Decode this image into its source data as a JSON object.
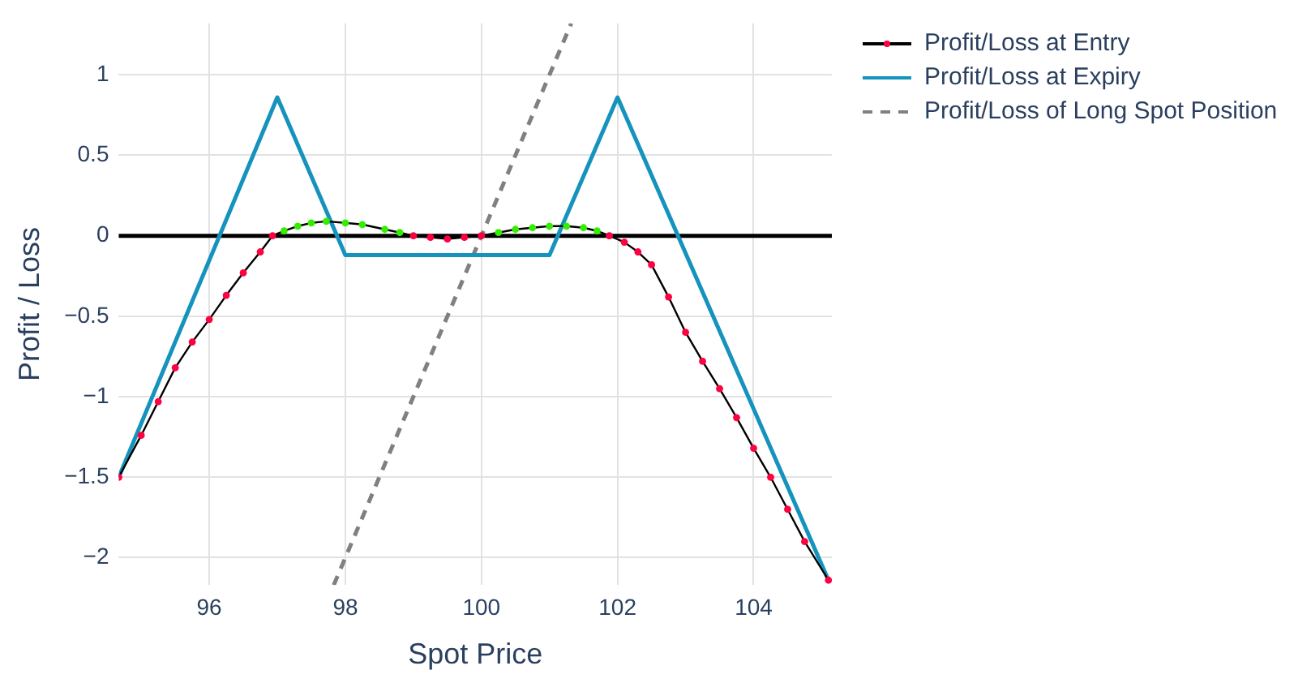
{
  "chart_data": {
    "type": "line",
    "xlabel": "Spot Price",
    "ylabel": "Profit / Loss",
    "xlim": [
      94.67,
      105.15
    ],
    "ylim": [
      -2.17,
      1.32
    ],
    "xticks": [
      96,
      98,
      100,
      102,
      104
    ],
    "yticks": [
      {
        "value": -2,
        "label": "−2"
      },
      {
        "value": -1.5,
        "label": "−1.5"
      },
      {
        "value": -1,
        "label": "−1"
      },
      {
        "value": -0.5,
        "label": "−0.5"
      },
      0,
      0.5,
      1
    ],
    "grid": true,
    "legend": "right",
    "ref_lines": [
      {
        "axis": "y",
        "value": 0,
        "color": "#000000"
      }
    ],
    "series": [
      {
        "name": "Profit/Loss at Entry",
        "type": "line",
        "color": "#000000",
        "marker": "circle",
        "line_style": "solid",
        "x": [
          94.67,
          95.0,
          95.25,
          95.5,
          95.75,
          96.0,
          96.25,
          96.5,
          96.75,
          96.93,
          97.1,
          97.3,
          97.5,
          97.72,
          98.0,
          98.25,
          98.58,
          98.8,
          99.0,
          99.25,
          99.5,
          99.75,
          100,
          100.25,
          100.5,
          100.75,
          101.0,
          101.25,
          101.5,
          101.7,
          101.88,
          102.1,
          102.3,
          102.5,
          102.75,
          103.0,
          103.25,
          103.5,
          103.75,
          104.0,
          104.25,
          104.5,
          104.75,
          105.1
        ],
        "values": [
          -1.5,
          -1.24,
          -1.03,
          -0.82,
          -0.66,
          -0.52,
          -0.37,
          -0.23,
          -0.1,
          0,
          0.03,
          0.06,
          0.08,
          0.09,
          0.08,
          0.07,
          0.04,
          0.02,
          0,
          -0.01,
          -0.02,
          -0.01,
          0,
          0.02,
          0.04,
          0.05,
          0.06,
          0.06,
          0.05,
          0.03,
          0,
          -0.04,
          -0.1,
          -0.18,
          -0.38,
          -0.6,
          -0.78,
          -0.95,
          -1.13,
          -1.32,
          -1.5,
          -1.7,
          -1.9,
          -2.14
        ],
        "colors": [
          "#ff0040",
          "#ff0040",
          "#ff0040",
          "#ff0040",
          "#ff0040",
          "#ff0040",
          "#ff0040",
          "#ff0040",
          "#ff0040",
          "#ff0040",
          "#33ee00",
          "#33ee00",
          "#33ee00",
          "#33ee00",
          "#33ee00",
          "#33ee00",
          "#33ee00",
          "#33ee00",
          "#ff0040",
          "#ff0040",
          "#ff0040",
          "#ff0040",
          "#ff0040",
          "#33ee00",
          "#33ee00",
          "#33ee00",
          "#33ee00",
          "#33ee00",
          "#33ee00",
          "#33ee00",
          "#ff0040",
          "#ff0040",
          "#ff0040",
          "#ff0040",
          "#ff0040",
          "#ff0040",
          "#ff0040",
          "#ff0040",
          "#ff0040",
          "#ff0040",
          "#ff0040",
          "#ff0040",
          "#ff0040",
          "#ff0040"
        ]
      },
      {
        "name": "Profit/Loss at Expiry",
        "type": "line",
        "color": "#1593bd",
        "marker": "none",
        "line_style": "solid",
        "x": [
          94.67,
          97,
          98,
          101,
          102,
          105.1
        ],
        "values": [
          -1.5,
          0.86,
          -0.12,
          -0.12,
          0.86,
          -2.14
        ]
      },
      {
        "name": "Profit/Loss of Long Spot Position",
        "type": "line",
        "color": "#808080",
        "marker": "none",
        "line_style": "dashed",
        "x": [
          97.83,
          101.32
        ],
        "values": [
          -2.17,
          1.32
        ]
      }
    ]
  }
}
